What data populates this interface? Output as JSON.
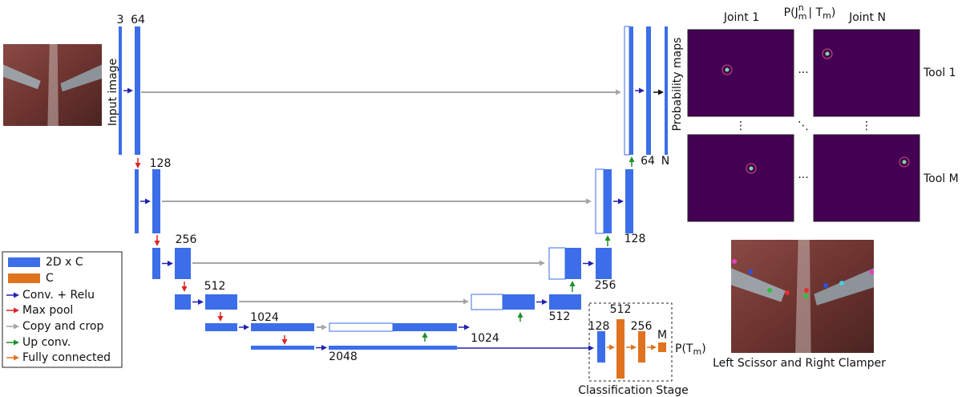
{
  "encoder": {
    "input_channels": 3,
    "level_labels": [
      64,
      128,
      256,
      512,
      1024
    ],
    "bottleneck": 2048,
    "input_label": "Input image"
  },
  "decoder": {
    "labels": [
      1024,
      512,
      256,
      128,
      64
    ],
    "output": "N",
    "output_label": "Probability maps"
  },
  "heatmaps": {
    "formula": {
      "p": "P(J",
      "sup": "n",
      "sub": "m",
      "given": "| T",
      "sub2": "m",
      "close": ")"
    },
    "columns": [
      "Joint 1",
      "Joint N"
    ],
    "rows": [
      "Tool 1",
      "Tool M"
    ],
    "hdots": "···",
    "vdots": "⋮",
    "ddots": "⋱"
  },
  "classification": {
    "labels": [
      128,
      512,
      256,
      "M"
    ],
    "output": {
      "p": "P(T",
      "sub": "m",
      "close": ")"
    },
    "title": "Classification Stage"
  },
  "legend": {
    "items": [
      "2D x C",
      "C",
      "Conv. + Relu",
      "Max pool",
      "Copy and crop",
      "Up conv.",
      "Fully connected"
    ]
  },
  "example_caption": "Left Scissor and Right Clamper"
}
